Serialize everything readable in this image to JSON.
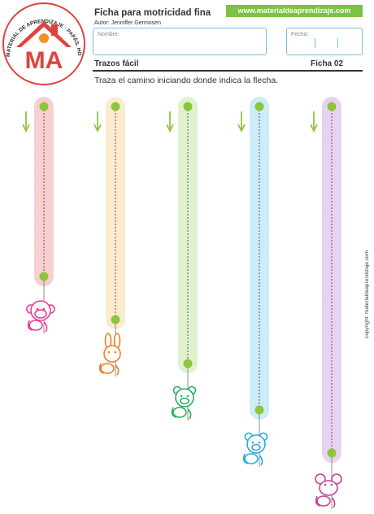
{
  "header": {
    "title": "Ficha para motricidad fina",
    "author": "Autor: Jenniffer Germosen",
    "website": "www.materialdeaprendizaje.com",
    "logo_text": "MA",
    "logo_arc_text": "MATERIAL DE APRENDIZAJE · PAPÁS, HOGAR Y ESCUELA"
  },
  "form": {
    "name_label": "Nombre:",
    "name_value": "",
    "date_label": "Fecha:",
    "date_value": ""
  },
  "sheet": {
    "subtitle": "Trazos fácil",
    "number": "Ficha 02",
    "instruction": "Traza el camino iniciando donde indica la flecha."
  },
  "footer": {
    "copyright": "copyright: materialdeaprendizaje.com"
  },
  "colors": {
    "accent_green": "#7dc242",
    "field_border": "#79c0dd",
    "logo_red": "#e0433b",
    "logo_orange": "#f29225",
    "logo_blue": "#2f9fd8",
    "dot_green": "#8cc63f"
  },
  "tracks": [
    {
      "bar_color": "#f6cfcf",
      "animal": "monkey",
      "animal_color": "#ec3a96"
    },
    {
      "bar_color": "#fbecce",
      "animal": "rabbit",
      "animal_color": "#f47b20"
    },
    {
      "bar_color": "#def3cd",
      "animal": "bear",
      "animal_color": "#27ad5f"
    },
    {
      "bar_color": "#ccecf7",
      "animal": "bear",
      "animal_color": "#2aa8e0"
    },
    {
      "bar_color": "#e7d3f0",
      "animal": "mouse",
      "animal_color": "#c7428f"
    }
  ],
  "icons": {
    "arrow": "down-arrow-icon",
    "start": "start-dot-icon",
    "end": "end-dot-icon"
  }
}
